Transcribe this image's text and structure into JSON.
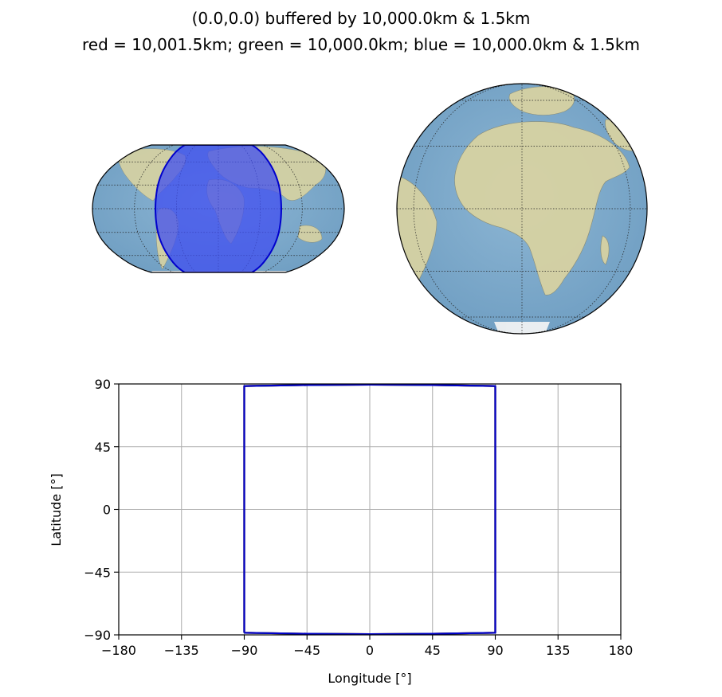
{
  "figure": {
    "title_line1": "(0.0,0.0) buffered by 10,000.0km & 1.5km",
    "title_line2": "red = 10,001.5km; green = 10,000.0km; blue = 10,000.0km & 1.5km"
  },
  "colors": {
    "ocean": "#7faacb",
    "land": "#d9d3a1",
    "buffer_fill": "#3f4df0",
    "buffer_edge": "#0000cc",
    "red": "#ff0000",
    "green": "#008000",
    "blue": "#0000cc",
    "grid": "#b0b0b0"
  },
  "chart_data": [
    {
      "type": "map",
      "projection": "Robinson",
      "gridlines": "dotted",
      "buffer_lon_range": [
        -90,
        90
      ],
      "buffer_lat_range": [
        -90,
        90
      ]
    },
    {
      "type": "map",
      "projection": "Orthographic",
      "central_longitude": 0,
      "central_latitude": 0,
      "gridlines": "dotted"
    },
    {
      "type": "line",
      "xlabel": "Longitude [°]",
      "ylabel": "Latitude [°]",
      "xlim": [
        -180,
        180
      ],
      "ylim": [
        -90,
        90
      ],
      "xticks": [
        -180,
        -135,
        -90,
        -45,
        0,
        45,
        90,
        135,
        180
      ],
      "yticks": [
        -90,
        -45,
        0,
        45,
        90
      ],
      "xtick_labels": [
        "−180",
        "−135",
        "−90",
        "−45",
        "0",
        "45",
        "90",
        "135",
        "180"
      ],
      "ytick_labels": [
        "−90",
        "−45",
        "0",
        "45",
        "90"
      ],
      "grid": true,
      "series": [
        {
          "color": "#ff0000",
          "x": [
            -90,
            -90,
            -45,
            0,
            45,
            90,
            90,
            45,
            0,
            -45,
            -90
          ],
          "y": [
            -88.5,
            88.5,
            89.2,
            89.5,
            89.2,
            88.5,
            -88.5,
            -89.2,
            -89.5,
            -89.2,
            -88.5
          ]
        },
        {
          "color": "#008000",
          "x": [
            -90,
            -90,
            -45,
            0,
            45,
            90,
            90,
            45,
            0,
            -45,
            -90
          ],
          "y": [
            -88.5,
            88.5,
            89.2,
            89.5,
            89.2,
            88.5,
            -88.5,
            -89.2,
            -89.5,
            -89.2,
            -88.5
          ]
        },
        {
          "color": "#0000cc",
          "x": [
            -90,
            -90,
            -45,
            0,
            45,
            90,
            90,
            45,
            0,
            -45,
            -90
          ],
          "y": [
            -88.5,
            88.5,
            89.2,
            89.5,
            89.2,
            88.5,
            -88.5,
            -89.2,
            -89.5,
            -89.2,
            -88.5
          ]
        }
      ]
    }
  ]
}
